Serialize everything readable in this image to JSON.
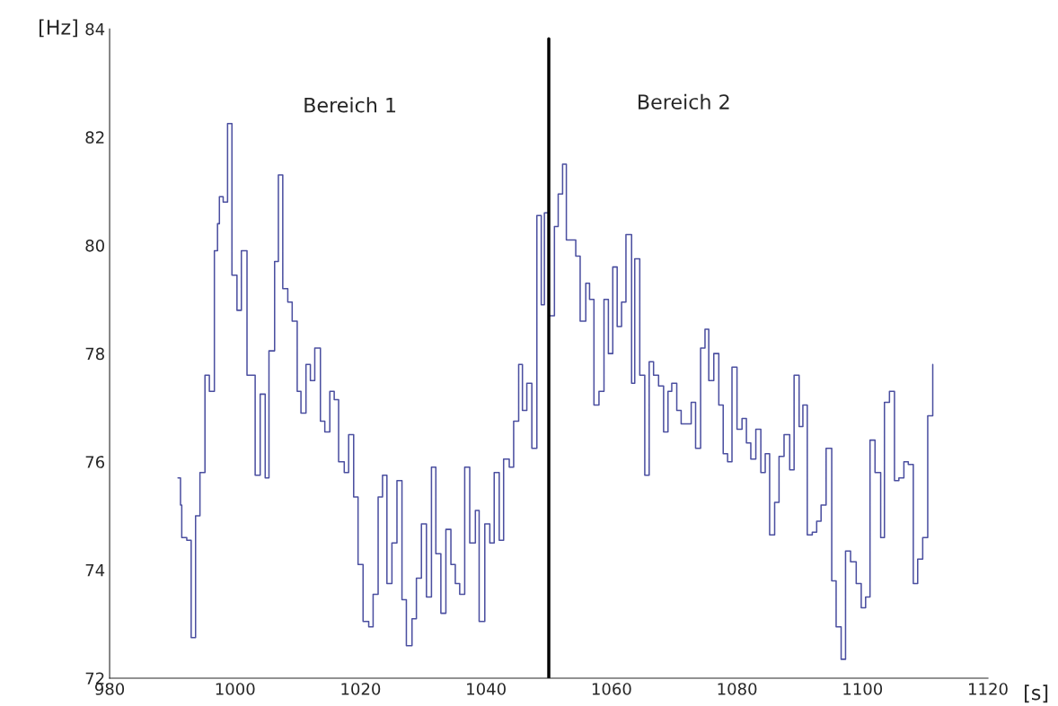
{
  "chart_data": {
    "type": "step",
    "xlabel": "[s]",
    "ylabel": "[Hz]",
    "xlim": [
      980,
      1120
    ],
    "ylim": [
      72,
      84
    ],
    "xticks": [
      980,
      1000,
      1020,
      1040,
      1060,
      1080,
      1100,
      1120
    ],
    "yticks": [
      72,
      74,
      76,
      78,
      80,
      82,
      84
    ],
    "grid": false,
    "legend": false,
    "annotations": [
      "Bereich 1",
      "Bereich 2"
    ],
    "ref_lines": [
      {
        "axis": "x",
        "value": 1050,
        "color": "#000000"
      }
    ],
    "series": [
      {
        "color": "#4b4fa0",
        "x": [
          990.9,
          991.3,
          991.5,
          992.3,
          993.0,
          993.7,
          994.4,
          995.2,
          995.9,
          996.7,
          997.2,
          997.5,
          998.1,
          998.8,
          999.5,
          1000.3,
          1001.0,
          1001.9,
          1003.2,
          1004.0,
          1004.8,
          1005.4,
          1006.3,
          1006.9,
          1007.6,
          1008.4,
          1009.1,
          1009.9,
          1010.5,
          1011.3,
          1012.0,
          1012.7,
          1013.6,
          1014.3,
          1015.1,
          1015.8,
          1016.5,
          1017.4,
          1018.1,
          1018.9,
          1019.6,
          1020.4,
          1021.3,
          1022.0,
          1022.8,
          1023.5,
          1024.2,
          1025.0,
          1025.8,
          1026.6,
          1027.3,
          1028.2,
          1028.9,
          1029.7,
          1030.5,
          1031.3,
          1032.0,
          1032.8,
          1033.6,
          1034.4,
          1035.1,
          1035.8,
          1036.6,
          1037.4,
          1038.3,
          1038.9,
          1039.8,
          1040.6,
          1041.3,
          1042.1,
          1042.8,
          1043.7,
          1044.4,
          1045.2,
          1045.8,
          1046.5,
          1047.3,
          1048.1,
          1048.8,
          1049.3,
          1050.0,
          1050.9,
          1051.5,
          1052.2,
          1052.8,
          1054.3,
          1055.0,
          1055.9,
          1056.5,
          1057.2,
          1058.0,
          1058.8,
          1059.5,
          1060.2,
          1060.9,
          1061.6,
          1062.3,
          1063.2,
          1063.7,
          1064.5,
          1065.3,
          1066.0,
          1066.7,
          1067.5,
          1068.3,
          1069.0,
          1069.6,
          1070.4,
          1071.1,
          1071.9,
          1072.7,
          1073.4,
          1074.2,
          1074.9,
          1075.5,
          1076.3,
          1077.1,
          1077.8,
          1078.5,
          1079.2,
          1080.0,
          1080.8,
          1081.5,
          1082.2,
          1083.0,
          1083.8,
          1084.5,
          1085.2,
          1086.0,
          1086.7,
          1087.5,
          1088.4,
          1089.1,
          1089.9,
          1090.5,
          1091.2,
          1092.0,
          1092.7,
          1093.4,
          1094.2,
          1095.1,
          1095.8,
          1096.6,
          1097.3,
          1098.1,
          1099.0,
          1099.8,
          1100.5,
          1101.2,
          1102.0,
          1102.9,
          1103.5,
          1104.3,
          1105.1,
          1105.8,
          1106.6,
          1107.3,
          1108.1,
          1108.8,
          1109.6,
          1110.4,
          1111.2
        ],
        "values": [
          75.7,
          75.2,
          74.6,
          74.55,
          72.75,
          75.0,
          75.8,
          77.6,
          77.3,
          79.9,
          80.4,
          80.9,
          80.8,
          82.25,
          79.45,
          78.8,
          79.9,
          77.6,
          75.75,
          77.25,
          75.7,
          78.05,
          79.7,
          81.3,
          79.2,
          78.95,
          78.6,
          77.3,
          76.9,
          77.8,
          77.5,
          78.1,
          76.75,
          76.55,
          77.3,
          77.15,
          76.0,
          75.8,
          76.5,
          75.35,
          74.1,
          73.05,
          72.95,
          73.55,
          75.35,
          75.75,
          73.75,
          74.5,
          75.65,
          73.45,
          72.6,
          73.1,
          73.85,
          74.85,
          73.5,
          75.9,
          74.3,
          73.2,
          74.75,
          74.1,
          73.75,
          73.55,
          75.9,
          74.5,
          75.1,
          73.05,
          74.85,
          74.5,
          75.8,
          74.55,
          76.05,
          75.9,
          76.75,
          77.8,
          76.95,
          77.45,
          76.25,
          80.55,
          78.9,
          80.6,
          78.7,
          80.35,
          80.95,
          81.5,
          80.1,
          79.8,
          78.6,
          79.3,
          79.0,
          77.05,
          77.3,
          79.0,
          78.0,
          79.6,
          78.5,
          78.95,
          80.2,
          77.45,
          79.75,
          77.6,
          75.75,
          77.85,
          77.6,
          77.4,
          76.55,
          77.3,
          77.45,
          76.95,
          76.7,
          76.7,
          77.1,
          76.25,
          78.1,
          78.45,
          77.5,
          78.0,
          77.05,
          76.15,
          76.0,
          77.75,
          76.6,
          76.8,
          76.35,
          76.05,
          76.6,
          75.8,
          76.15,
          74.65,
          75.25,
          76.1,
          76.5,
          75.85,
          77.6,
          76.65,
          77.05,
          74.65,
          74.7,
          74.9,
          75.2,
          76.25,
          73.8,
          72.95,
          72.35,
          74.35,
          74.15,
          73.75,
          73.3,
          73.5,
          76.4,
          75.8,
          74.6,
          77.1,
          77.3,
          75.65,
          75.7,
          76.0,
          75.95,
          73.75,
          74.2,
          74.6,
          76.85,
          77.8
        ]
      }
    ]
  }
}
